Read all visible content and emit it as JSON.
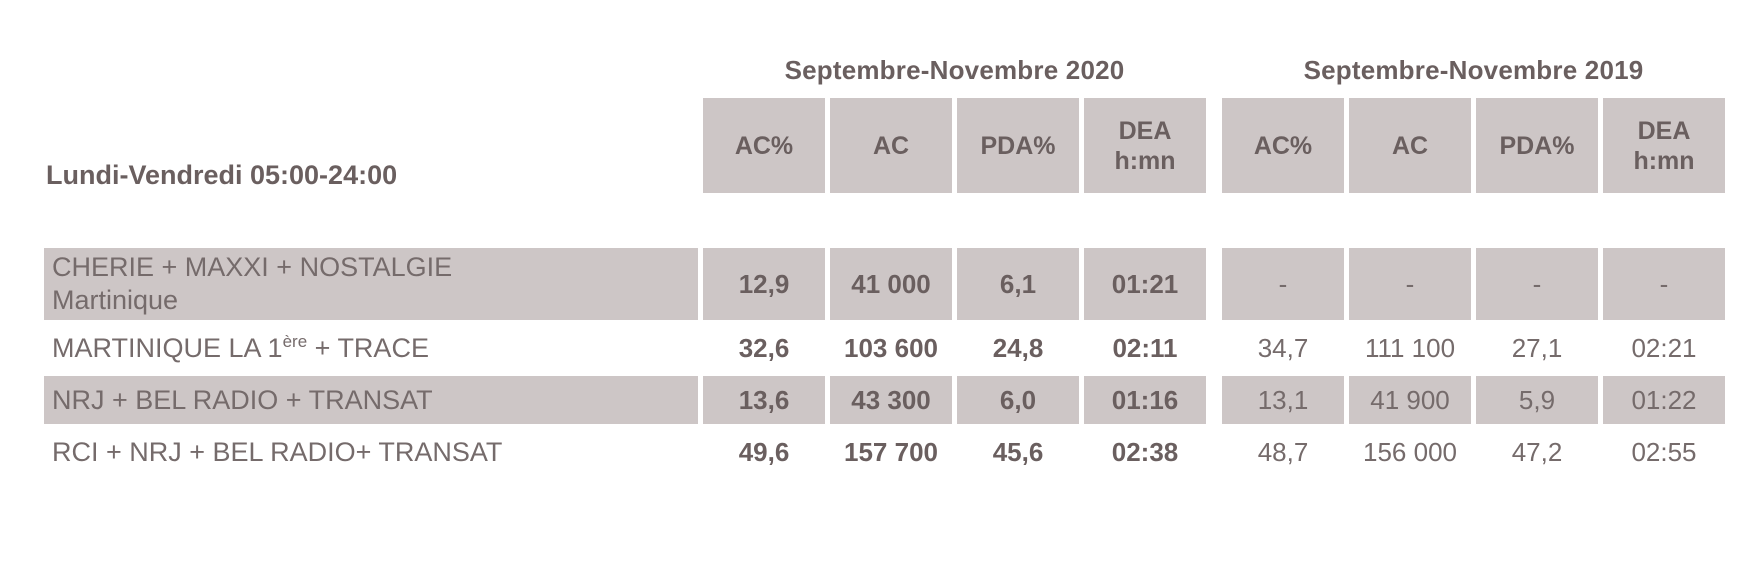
{
  "colors": {
    "cell_bg": "#cdc6c6",
    "text_dark": "#6a5f5f",
    "text_regular": "#756b6b"
  },
  "table": {
    "period_title": "Lundi-Vendredi 05:00-24:00",
    "groups": [
      {
        "label": "Septembre-Novembre 2020"
      },
      {
        "label": "Septembre-Novembre 2019"
      }
    ],
    "columns": [
      {
        "l1": "AC%",
        "l2": ""
      },
      {
        "l1": "AC",
        "l2": ""
      },
      {
        "l1": "PDA%",
        "l2": ""
      },
      {
        "l1": "DEA",
        "l2": "h:mn"
      }
    ],
    "rows": [
      {
        "label_pre": "CHERIE + MAXXI + NOSTALGIE",
        "label_sup": "",
        "label_post": "",
        "label_l2": "Martinique",
        "shaded": true,
        "y2020": [
          "12,9",
          "41 000",
          "6,1",
          "01:21"
        ],
        "y2019": [
          "-",
          "-",
          "-",
          "-"
        ]
      },
      {
        "label_pre": "MARTINIQUE LA 1",
        "label_sup": "ère",
        "label_post": " + TRACE",
        "label_l2": "",
        "shaded": false,
        "y2020": [
          "32,6",
          "103 600",
          "24,8",
          "02:11"
        ],
        "y2019": [
          "34,7",
          "111 100",
          "27,1",
          "02:21"
        ]
      },
      {
        "label_pre": "NRJ + BEL RADIO + TRANSAT",
        "label_sup": "",
        "label_post": "",
        "label_l2": "",
        "shaded": true,
        "y2020": [
          "13,6",
          "43 300",
          "6,0",
          "01:16"
        ],
        "y2019": [
          "13,1",
          "41 900",
          "5,9",
          "01:22"
        ]
      },
      {
        "label_pre": "RCI + NRJ + BEL RADIO+ TRANSAT",
        "label_sup": "",
        "label_post": "",
        "label_l2": "",
        "shaded": false,
        "y2020": [
          "49,6",
          "157 700",
          "45,6",
          "02:38"
        ],
        "y2019": [
          "48,7",
          "156 000",
          "47,2",
          "02:55"
        ]
      }
    ]
  }
}
